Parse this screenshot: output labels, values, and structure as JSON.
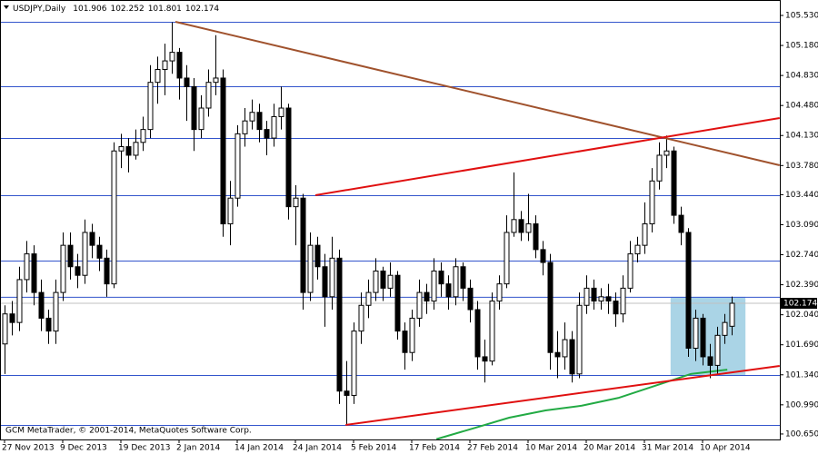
{
  "chart_data": {
    "type": "candlestick",
    "symbol": "USDJPY,Daily",
    "footer": "GCM MetaTrader, © 2001-2014, MetaQuotes Software Corp.",
    "bull_color": "#ffffff",
    "bear_color": "#000000",
    "categories": [
      "27 Nov 2013",
      null,
      null,
      null,
      null,
      null,
      null,
      null,
      "9 Dec 2013",
      null,
      null,
      null,
      null,
      null,
      null,
      null,
      "19 Dec 2013",
      null,
      null,
      null,
      null,
      null,
      null,
      null,
      "2 Jan 2014",
      null,
      null,
      null,
      null,
      null,
      null,
      null,
      "14 Jan 2014",
      null,
      null,
      null,
      null,
      null,
      null,
      null,
      "24 Jan 2014",
      null,
      null,
      null,
      null,
      null,
      null,
      null,
      "5 Feb 2014",
      null,
      null,
      null,
      null,
      null,
      null,
      null,
      "17 Feb 2014",
      null,
      null,
      null,
      null,
      null,
      null,
      null,
      "27 Feb 2014",
      null,
      null,
      null,
      null,
      null,
      null,
      null,
      "10 Mar 2014",
      null,
      null,
      null,
      null,
      null,
      null,
      null,
      "20 Mar 2014",
      null,
      null,
      null,
      null,
      null,
      null,
      null,
      "31 Mar 2014",
      null,
      null,
      null,
      null,
      null,
      null,
      null,
      "10 Apr 2014",
      null,
      null,
      null,
      null
    ],
    "candles": [
      [
        101.7,
        102.15,
        101.35,
        102.05
      ],
      [
        102.05,
        102.2,
        101.8,
        101.95
      ],
      [
        101.95,
        102.6,
        101.85,
        102.45
      ],
      [
        102.45,
        102.9,
        102.3,
        102.75
      ],
      [
        102.75,
        102.85,
        102.15,
        102.3
      ],
      [
        102.3,
        102.45,
        101.85,
        102.0
      ],
      [
        102.0,
        102.1,
        101.7,
        101.85
      ],
      [
        101.85,
        102.45,
        101.7,
        102.3
      ],
      [
        102.3,
        103.0,
        102.2,
        102.85
      ],
      [
        102.85,
        103.0,
        102.45,
        102.6
      ],
      [
        102.6,
        102.75,
        102.35,
        102.5
      ],
      [
        102.5,
        103.15,
        102.4,
        103.0
      ],
      [
        103.0,
        103.1,
        102.7,
        102.85
      ],
      [
        102.85,
        102.95,
        102.55,
        102.7
      ],
      [
        102.7,
        102.8,
        102.25,
        102.4
      ],
      [
        102.4,
        104.05,
        102.35,
        103.95
      ],
      [
        103.95,
        104.15,
        103.75,
        104.0
      ],
      [
        104.0,
        104.1,
        103.7,
        103.9
      ],
      [
        103.9,
        104.2,
        103.85,
        104.05
      ],
      [
        104.05,
        104.35,
        103.95,
        104.2
      ],
      [
        104.2,
        104.95,
        104.1,
        104.75
      ],
      [
        104.75,
        105.05,
        104.5,
        104.9
      ],
      [
        104.9,
        105.2,
        104.6,
        105.0
      ],
      [
        105.0,
        105.45,
        104.85,
        105.1
      ],
      [
        105.1,
        105.15,
        104.55,
        104.8
      ],
      [
        104.8,
        104.95,
        104.3,
        104.7
      ],
      [
        104.7,
        104.8,
        103.95,
        104.2
      ],
      [
        104.2,
        104.6,
        104.1,
        104.45
      ],
      [
        104.45,
        104.9,
        104.35,
        104.75
      ],
      [
        104.75,
        105.3,
        104.6,
        104.8
      ],
      [
        104.8,
        104.9,
        102.95,
        103.1
      ],
      [
        103.1,
        103.6,
        102.85,
        103.4
      ],
      [
        103.4,
        104.25,
        103.3,
        104.15
      ],
      [
        104.15,
        104.45,
        104.0,
        104.3
      ],
      [
        104.3,
        104.55,
        104.2,
        104.4
      ],
      [
        104.4,
        104.5,
        104.05,
        104.2
      ],
      [
        104.2,
        104.3,
        103.9,
        104.1
      ],
      [
        104.1,
        104.5,
        104.0,
        104.35
      ],
      [
        104.35,
        104.7,
        104.2,
        104.45
      ],
      [
        104.45,
        104.5,
        103.15,
        103.3
      ],
      [
        103.3,
        103.55,
        102.85,
        103.4
      ],
      [
        103.4,
        103.45,
        102.1,
        102.3
      ],
      [
        102.3,
        103.0,
        102.2,
        102.85
      ],
      [
        102.85,
        102.95,
        102.45,
        102.6
      ],
      [
        102.6,
        102.75,
        101.9,
        102.25
      ],
      [
        102.25,
        102.95,
        102.1,
        102.7
      ],
      [
        102.7,
        102.8,
        101.0,
        101.15
      ],
      [
        101.15,
        101.5,
        100.76,
        101.1
      ],
      [
        101.1,
        101.95,
        101.0,
        101.85
      ],
      [
        101.85,
        102.3,
        101.7,
        102.15
      ],
      [
        102.15,
        102.45,
        102.0,
        102.3
      ],
      [
        102.3,
        102.7,
        102.2,
        102.55
      ],
      [
        102.55,
        102.6,
        102.2,
        102.35
      ],
      [
        102.35,
        102.65,
        102.25,
        102.5
      ],
      [
        102.5,
        102.55,
        101.75,
        101.85
      ],
      [
        101.85,
        101.95,
        101.4,
        101.6
      ],
      [
        101.6,
        102.1,
        101.5,
        102.0
      ],
      [
        102.0,
        102.45,
        101.9,
        102.3
      ],
      [
        102.3,
        102.4,
        102.05,
        102.2
      ],
      [
        102.2,
        102.7,
        102.1,
        102.55
      ],
      [
        102.55,
        102.65,
        102.25,
        102.4
      ],
      [
        102.4,
        102.5,
        102.1,
        102.25
      ],
      [
        102.25,
        102.7,
        102.15,
        102.6
      ],
      [
        102.6,
        102.65,
        102.2,
        102.35
      ],
      [
        102.35,
        102.45,
        101.95,
        102.1
      ],
      [
        102.1,
        102.2,
        101.4,
        101.55
      ],
      [
        101.55,
        101.75,
        101.25,
        101.5
      ],
      [
        101.5,
        102.3,
        101.45,
        102.2
      ],
      [
        102.2,
        102.5,
        102.1,
        102.4
      ],
      [
        102.4,
        103.2,
        102.35,
        103.0
      ],
      [
        103.0,
        103.7,
        102.95,
        103.15
      ],
      [
        103.15,
        103.25,
        102.9,
        103.0
      ],
      [
        103.0,
        103.45,
        102.9,
        103.1
      ],
      [
        103.1,
        103.2,
        102.7,
        102.8
      ],
      [
        102.8,
        102.9,
        102.5,
        102.65
      ],
      [
        102.65,
        102.75,
        101.4,
        101.6
      ],
      [
        101.6,
        101.85,
        101.3,
        101.55
      ],
      [
        101.55,
        101.95,
        101.4,
        101.75
      ],
      [
        101.75,
        101.85,
        101.25,
        101.35
      ],
      [
        101.35,
        102.3,
        101.3,
        102.15
      ],
      [
        102.15,
        102.5,
        102.05,
        102.35
      ],
      [
        102.35,
        102.45,
        102.1,
        102.2
      ],
      [
        102.2,
        102.35,
        102.1,
        102.25
      ],
      [
        102.25,
        102.4,
        102.05,
        102.2
      ],
      [
        102.2,
        102.3,
        101.9,
        102.05
      ],
      [
        102.05,
        102.5,
        101.95,
        102.35
      ],
      [
        102.35,
        102.9,
        102.3,
        102.75
      ],
      [
        102.75,
        102.95,
        102.65,
        102.85
      ],
      [
        102.85,
        103.35,
        102.75,
        103.1
      ],
      [
        103.1,
        103.75,
        103.0,
        103.6
      ],
      [
        103.6,
        104.05,
        103.5,
        103.9
      ],
      [
        103.9,
        104.13,
        103.75,
        103.95
      ],
      [
        103.95,
        104.0,
        103.1,
        103.2
      ],
      [
        103.2,
        103.3,
        102.85,
        103.0
      ],
      [
        103.0,
        103.05,
        101.55,
        101.65
      ],
      [
        101.65,
        102.1,
        101.5,
        102.0
      ],
      [
        102.0,
        102.05,
        101.45,
        101.55
      ],
      [
        101.55,
        101.7,
        101.3,
        101.45
      ],
      [
        101.45,
        101.9,
        101.35,
        101.8
      ],
      [
        101.8,
        102.05,
        101.7,
        101.95
      ],
      [
        101.906,
        102.252,
        101.801,
        102.174
      ]
    ],
    "ylim": [
      100.586,
      105.71
    ],
    "yticks": [
      {
        "value": 105.53,
        "label": "105.530"
      },
      {
        "value": 105.18,
        "label": "105.180"
      },
      {
        "value": 104.83,
        "label": "104.830"
      },
      {
        "value": 104.48,
        "label": "104.480"
      },
      {
        "value": 104.13,
        "label": "104.130"
      },
      {
        "value": 103.78,
        "label": "103.780"
      },
      {
        "value": 103.44,
        "label": "103.440"
      },
      {
        "value": 103.09,
        "label": "103.090"
      },
      {
        "value": 102.74,
        "label": "102.740"
      },
      {
        "value": 102.39,
        "label": "102.390"
      },
      {
        "value": 102.04,
        "label": "102.040"
      },
      {
        "value": 101.69,
        "label": "101.690"
      },
      {
        "value": 101.34,
        "label": "101.340"
      },
      {
        "value": 100.99,
        "label": "100.990"
      },
      {
        "value": 100.65,
        "label": "100.650"
      }
    ],
    "hlines": [
      105.456,
      104.704,
      104.101,
      103.434,
      102.672,
      102.249,
      101.338,
      100.756
    ],
    "hline_color": "#3355cc",
    "trendlines": [
      {
        "color": "#a0522d",
        "x": [
          23.5,
          106.6
        ],
        "values": [
          105.456,
          103.783
        ]
      },
      {
        "color": "#e01010",
        "x": [
          42.75,
          106.6
        ],
        "values": [
          103.434,
          104.334
        ]
      },
      {
        "color": "#e01010",
        "x": [
          46.9,
          106.6
        ],
        "values": [
          100.756,
          101.444
        ]
      }
    ],
    "moving_average": {
      "color": "#22aa44",
      "x": [
        59.4,
        64.4,
        69.4,
        74.4,
        79.4,
        84.4,
        89.4,
        94.4,
        99.4
      ],
      "values": [
        100.59,
        100.714,
        100.84,
        100.925,
        100.98,
        101.07,
        101.21,
        101.35,
        101.4
      ]
    },
    "rectangle": {
      "color": "#aad4e6",
      "x": [
        91.6,
        101.9
      ],
      "values": [
        102.249,
        101.338
      ]
    }
  }
}
